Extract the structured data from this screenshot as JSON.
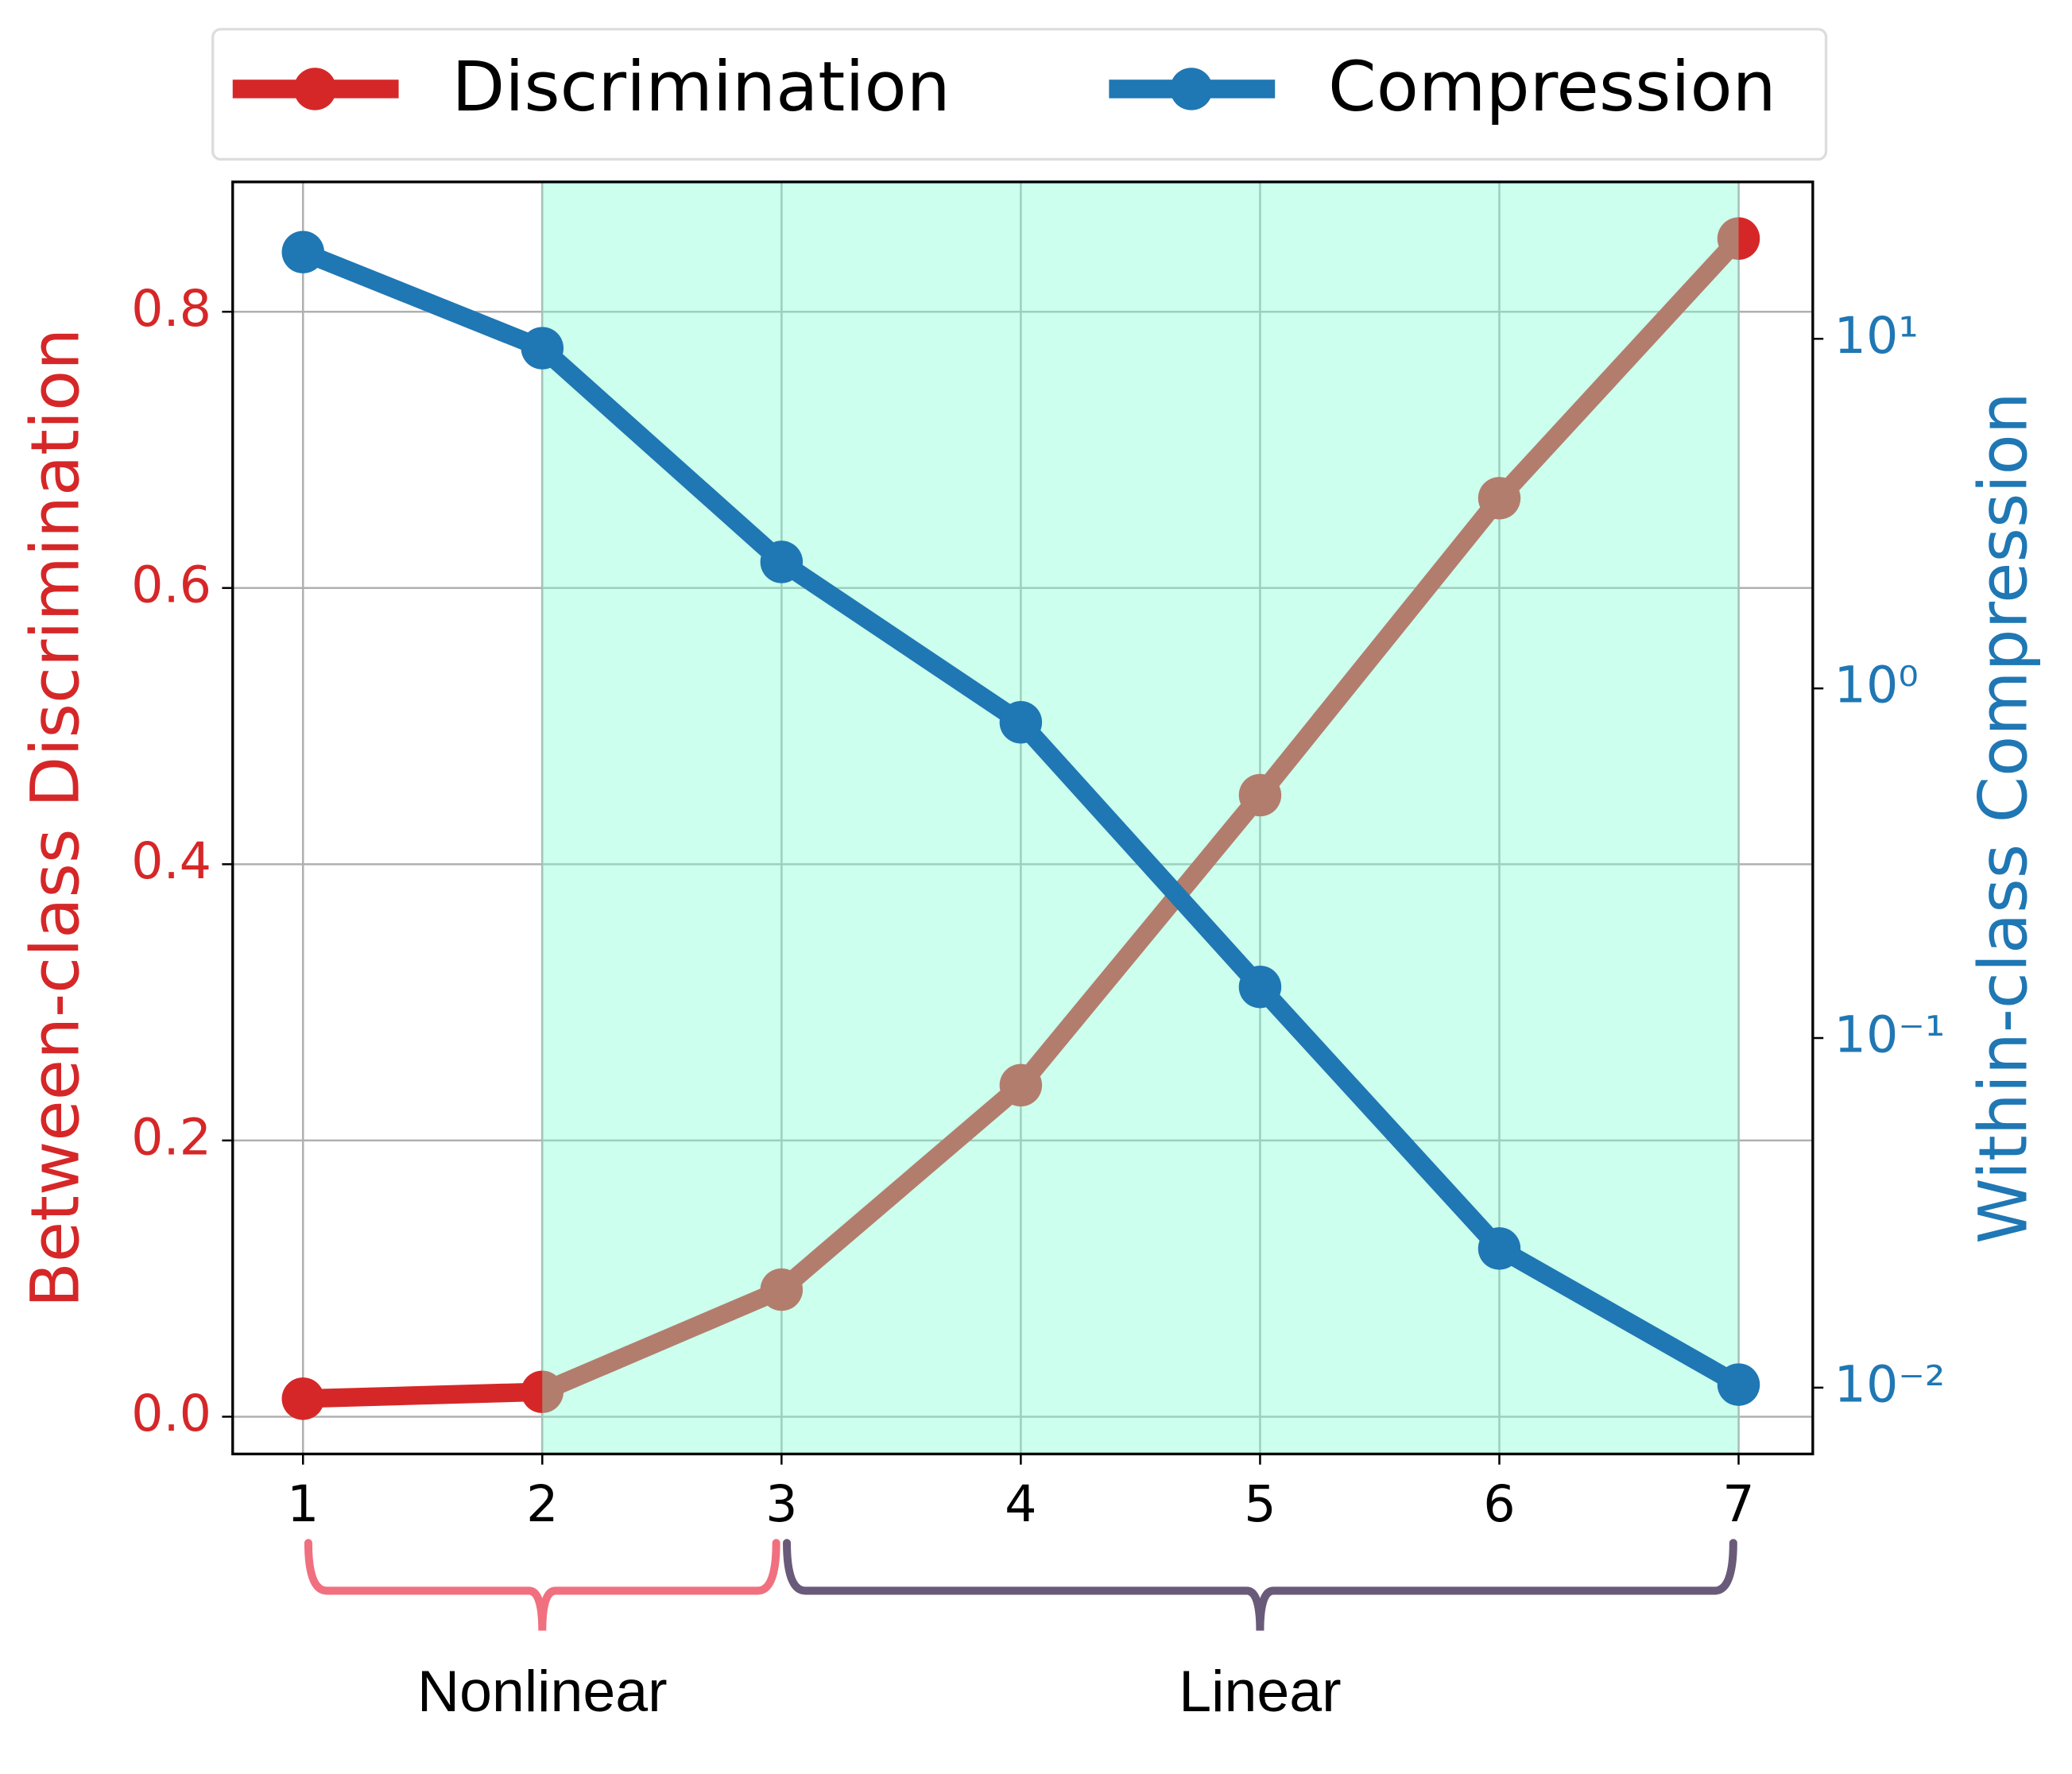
{
  "chart_data": {
    "type": "line",
    "x": [
      1,
      2,
      3,
      4,
      5,
      6,
      7
    ],
    "xlim": [
      0.706,
      7.31
    ],
    "xticks": [
      1,
      2,
      3,
      4,
      5,
      6,
      7
    ],
    "ylabel": "Between-class Discrimination",
    "ylabel_color": "#d62728",
    "ylim": [
      -0.027,
      0.894
    ],
    "yticks": [
      {
        "value": 0,
        "label": "0.0"
      },
      0.2,
      0.4,
      0.6,
      0.8
    ],
    "y2label": "Within-class Compression",
    "y2label_color": "#1f77b4",
    "y2log": true,
    "y2lim": [
      0.00646,
      28.1
    ],
    "y2ticks": [
      {
        "value": 10,
        "label": "10¹"
      },
      {
        "value": 1,
        "label": "10⁰"
      },
      {
        "value": 0.1,
        "label": "10⁻¹"
      },
      {
        "value": 0.01,
        "label": "10⁻²"
      }
    ],
    "grid": true,
    "shaded_span": [
      2,
      7
    ],
    "shaded_color": "#7fffd4",
    "series": [
      {
        "name": "Discrimination",
        "color": "#d62728",
        "values": [
          0.013,
          0.018,
          0.092,
          0.24,
          0.45,
          0.665,
          0.853
        ]
      },
      {
        "name": "Compression",
        "color": "#1f77b4",
        "axis": "y2",
        "values": [
          17.7,
          9.4,
          2.3,
          0.8,
          0.14,
          0.025,
          0.0102
        ]
      }
    ],
    "legend": "top",
    "annotations": [
      {
        "text": "Nonlinear",
        "span": [
          1,
          3
        ],
        "color": "#f07080"
      },
      {
        "text": "Linear",
        "span": [
          3,
          7
        ],
        "color": "#6a5a7a"
      }
    ]
  }
}
